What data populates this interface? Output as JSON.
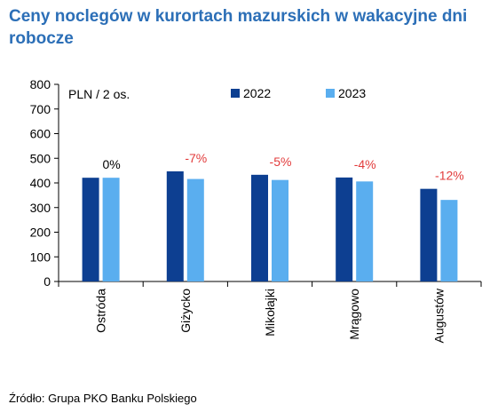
{
  "title": "Ceny noclegów w kurortach mazurskich w wakacyjne dni robocze",
  "source": "Źródło: Grupa PKO Banku Polskiego",
  "chart_data": {
    "type": "bar",
    "title": "Ceny noclegów w kurortach mazurskich w wakacyjne dni robocze",
    "unit_label": "PLN / 2 os.",
    "categories": [
      "Ostróda",
      "Giżycko",
      "Mikołajki",
      "Mrągowo",
      "Augustów"
    ],
    "series": [
      {
        "name": "2022",
        "color": "#0d3f91",
        "values": [
          421,
          447,
          433,
          422,
          376
        ]
      },
      {
        "name": "2023",
        "color": "#5aaeef",
        "values": [
          421,
          416,
          412,
          406,
          331
        ]
      }
    ],
    "change_labels": [
      "0%",
      "-7%",
      "-5%",
      "-4%",
      "-12%"
    ],
    "change_colors": [
      "#000000",
      "#e23b3b",
      "#e23b3b",
      "#e23b3b",
      "#e23b3b"
    ],
    "ylim": [
      0,
      800
    ],
    "yticks": [
      0,
      100,
      200,
      300,
      400,
      500,
      600,
      700,
      800
    ],
    "legend_position": "top",
    "grid": false
  }
}
